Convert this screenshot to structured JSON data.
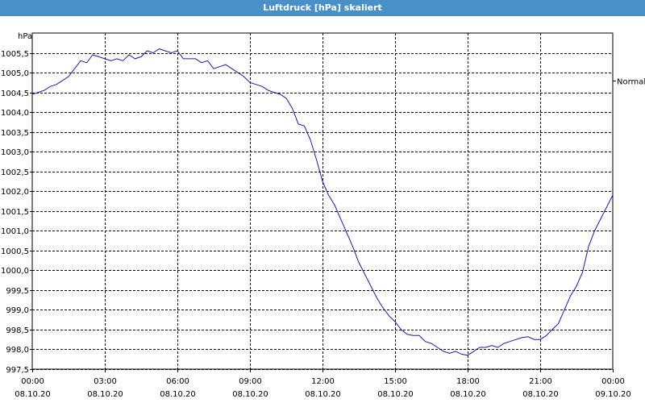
{
  "window": {
    "title": "Luftdruck [hPa] skaliert"
  },
  "chart_data": {
    "type": "line",
    "title": "Luftdruck [hPa] skaliert",
    "ylabel": "hPa",
    "xlabel": "",
    "ylim": [
      997.5,
      1006.0
    ],
    "xlim": [
      0,
      24
    ],
    "grid": true,
    "y_ticks": [
      "997,5",
      "998,0",
      "998,5",
      "999,0",
      "999,5",
      "1000,0",
      "1000,5",
      "1001,0",
      "1001,5",
      "1002,0",
      "1002,5",
      "1003,0",
      "1003,5",
      "1004,0",
      "1004,5",
      "1005,0",
      "1005,5"
    ],
    "y_tick_values": [
      997.5,
      998.0,
      998.5,
      999.0,
      999.5,
      1000.0,
      1000.5,
      1001.0,
      1001.5,
      1002.0,
      1002.5,
      1003.0,
      1003.5,
      1004.0,
      1004.5,
      1005.0,
      1005.5
    ],
    "x_tick_times": [
      "00:00",
      "03:00",
      "06:00",
      "09:00",
      "12:00",
      "15:00",
      "18:00",
      "21:00",
      "00:00"
    ],
    "x_tick_dates": [
      "08.10.20",
      "08.10.20",
      "08.10.20",
      "08.10.20",
      "08.10.20",
      "08.10.20",
      "08.10.20",
      "08.10.20",
      "09.10.20"
    ],
    "x_tick_values": [
      0,
      3,
      6,
      9,
      12,
      15,
      18,
      21,
      24
    ],
    "reference_line": {
      "label": "Normal",
      "value": 1004.8
    },
    "series": [
      {
        "color": "#1a1aa6",
        "x": [
          0,
          0.25,
          0.5,
          0.75,
          1.0,
          1.25,
          1.5,
          1.75,
          2.0,
          2.25,
          2.5,
          2.75,
          3.0,
          3.25,
          3.5,
          3.75,
          4.0,
          4.25,
          4.5,
          4.75,
          5.0,
          5.25,
          5.5,
          5.75,
          6.0,
          6.25,
          6.5,
          6.75,
          7.0,
          7.25,
          7.5,
          7.75,
          8.0,
          8.25,
          8.5,
          8.75,
          9.0,
          9.25,
          9.5,
          9.75,
          10.0,
          10.25,
          10.5,
          10.75,
          11.0,
          11.25,
          11.5,
          11.75,
          12.0,
          12.25,
          12.5,
          12.75,
          13.0,
          13.25,
          13.5,
          13.75,
          14.0,
          14.25,
          14.5,
          14.75,
          15.0,
          15.25,
          15.5,
          15.75,
          16.0,
          16.25,
          16.5,
          16.75,
          17.0,
          17.25,
          17.5,
          17.75,
          18.0,
          18.25,
          18.5,
          18.75,
          19.0,
          19.25,
          19.5,
          19.75,
          20.0,
          20.25,
          20.5,
          20.75,
          21.0,
          21.25,
          21.5,
          21.75,
          22.0,
          22.25,
          22.5,
          22.75,
          23.0,
          23.25,
          23.5,
          23.75,
          24.0
        ],
        "y": [
          1004.45,
          1004.5,
          1004.55,
          1004.65,
          1004.7,
          1004.8,
          1004.9,
          1005.1,
          1005.3,
          1005.25,
          1005.45,
          1005.4,
          1005.35,
          1005.3,
          1005.35,
          1005.3,
          1005.45,
          1005.35,
          1005.4,
          1005.55,
          1005.5,
          1005.6,
          1005.55,
          1005.5,
          1005.55,
          1005.35,
          1005.35,
          1005.35,
          1005.25,
          1005.3,
          1005.1,
          1005.15,
          1005.2,
          1005.1,
          1005.0,
          1004.9,
          1004.75,
          1004.7,
          1004.65,
          1004.55,
          1004.5,
          1004.45,
          1004.35,
          1004.1,
          1003.7,
          1003.65,
          1003.3,
          1002.8,
          1002.25,
          1001.9,
          1001.65,
          1001.3,
          1000.95,
          1000.6,
          1000.2,
          999.9,
          999.6,
          999.3,
          999.05,
          998.85,
          998.7,
          998.5,
          998.38,
          998.35,
          998.35,
          998.2,
          998.15,
          998.05,
          997.95,
          997.9,
          997.95,
          997.88,
          997.85,
          997.95,
          998.05,
          998.05,
          998.1,
          998.05,
          998.15,
          998.2,
          998.25,
          998.3,
          998.32,
          998.25,
          998.25,
          998.35,
          998.5,
          998.65,
          999.0,
          999.35,
          999.6,
          999.95,
          1000.6,
          1001.0,
          1001.3,
          1001.6,
          1001.9
        ]
      }
    ]
  }
}
